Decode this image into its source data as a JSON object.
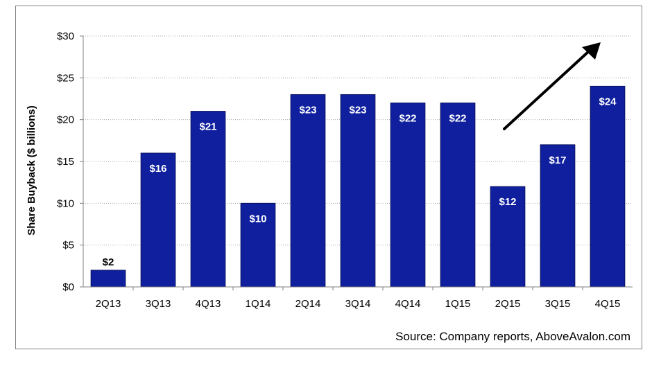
{
  "chart_data": {
    "type": "bar",
    "categories": [
      "2Q13",
      "3Q13",
      "4Q13",
      "1Q14",
      "2Q14",
      "3Q14",
      "4Q14",
      "1Q15",
      "2Q15",
      "3Q15",
      "4Q15"
    ],
    "values": [
      2,
      16,
      21,
      10,
      23,
      23,
      22,
      22,
      12,
      17,
      24
    ],
    "data_labels": [
      "$2",
      "$16",
      "$21",
      "$10",
      "$23",
      "$23",
      "$22",
      "$22",
      "$12",
      "$17",
      "$24"
    ],
    "ylabel": "Share Buyback ($ billions)",
    "xlabel": "",
    "ylim": [
      0,
      30
    ],
    "yticks": [
      0,
      5,
      10,
      15,
      20,
      25,
      30
    ],
    "ytick_labels": [
      "$0",
      "$5",
      "$10",
      "$15",
      "$20",
      "$25",
      "$30"
    ],
    "grid": "horizontal dotted",
    "annotation": "upward arrow",
    "source": "Source: Company reports, AboveAvalon.com",
    "colors": {
      "bar": "#0f1f9e",
      "bar_stroke": "#0a135e",
      "grid": "#a6a6a6",
      "axis": "#7f7f7f",
      "arrow": "#000000"
    }
  }
}
